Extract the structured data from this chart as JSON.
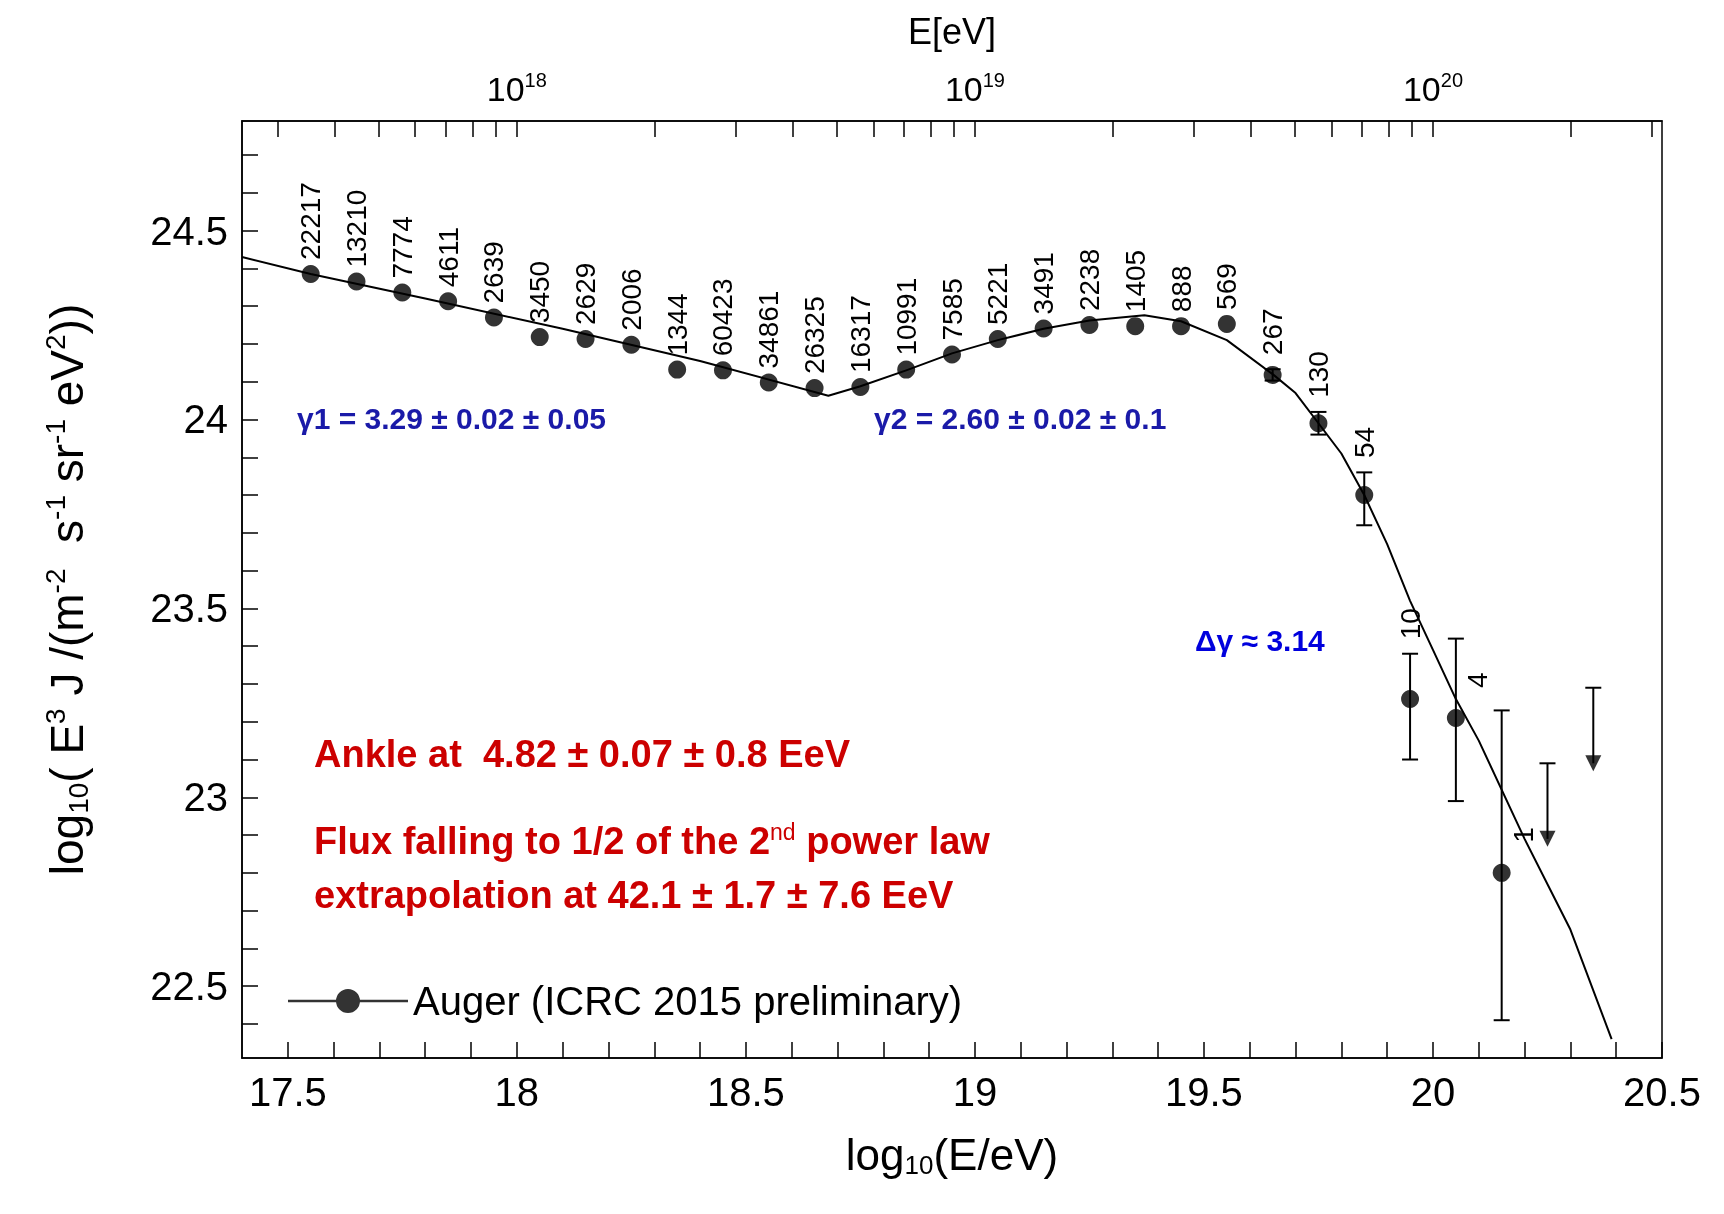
{
  "chart_data": {
    "type": "scatter",
    "xlabel": "log$_{10}$(E/eV)",
    "ylabel": "log$_{10}$( E$^{3}$ J /(m$^{-2}$  s$^{-1}$ sr$^{-1}$ eV$^{2}$))",
    "x2label": "E[eV]",
    "xlim": [
      17.4,
      20.5
    ],
    "ylim": [
      22.31,
      24.79
    ],
    "x2lim": [
      2.512e+17,
      3.162e+20
    ],
    "log": "x2",
    "xticks": [
      17.5,
      {
        "value": 17.6,
        "label": null
      },
      {
        "value": 17.7,
        "label": null
      },
      {
        "value": 17.8,
        "label": null
      },
      {
        "value": 17.9,
        "label": null
      },
      18,
      {
        "value": 18.1,
        "label": null
      },
      {
        "value": 18.2,
        "label": null
      },
      {
        "value": 18.3,
        "label": null
      },
      {
        "value": 18.4,
        "label": null
      },
      18.5,
      {
        "value": 18.6,
        "label": null
      },
      {
        "value": 18.7,
        "label": null
      },
      {
        "value": 18.8,
        "label": null
      },
      {
        "value": 18.9,
        "label": null
      },
      19,
      {
        "value": 19.1,
        "label": null
      },
      {
        "value": 19.2,
        "label": null
      },
      {
        "value": 19.3,
        "label": null
      },
      {
        "value": 19.4,
        "label": null
      },
      19.5,
      {
        "value": 19.6,
        "label": null
      },
      {
        "value": 19.7,
        "label": null
      },
      {
        "value": 19.8,
        "label": null
      },
      {
        "value": 19.9,
        "label": null
      },
      20,
      {
        "value": 20.1,
        "label": null
      },
      {
        "value": 20.2,
        "label": null
      },
      {
        "value": 20.3,
        "label": null
      },
      {
        "value": 20.4,
        "label": null
      },
      20.5
    ],
    "yticks": [
      {
        "value": 22.4,
        "label": null
      },
      22.5,
      {
        "value": 22.6,
        "label": null
      },
      {
        "value": 22.7,
        "label": null
      },
      {
        "value": 22.8,
        "label": null
      },
      {
        "value": 22.9,
        "label": null
      },
      23,
      {
        "value": 23.1,
        "label": null
      },
      {
        "value": 23.2,
        "label": null
      },
      {
        "value": 23.3,
        "label": null
      },
      {
        "value": 23.4,
        "label": null
      },
      23.5,
      {
        "value": 23.6,
        "label": null
      },
      {
        "value": 23.7,
        "label": null
      },
      {
        "value": 23.8,
        "label": null
      },
      {
        "value": 23.9,
        "label": null
      },
      24,
      {
        "value": 24.1,
        "label": null
      },
      {
        "value": 24.2,
        "label": null
      },
      {
        "value": 24.3,
        "label": null
      },
      {
        "value": 24.4,
        "label": null
      },
      24.5,
      {
        "value": 24.6,
        "label": null
      },
      {
        "value": 24.7,
        "label": null
      }
    ],
    "x2ticks": [
      {
        "value": 3e+17,
        "label": null
      },
      {
        "value": 4e+17,
        "label": null
      },
      {
        "value": 5e+17,
        "label": null
      },
      {
        "value": 6e+17,
        "label": null
      },
      {
        "value": 7e+17,
        "label": null
      },
      {
        "value": 8e+17,
        "label": null
      },
      {
        "value": 9e+17,
        "label": null
      },
      {
        "value": 1e+18,
        "label": "10$^{18}$"
      },
      {
        "value": 2e+18,
        "label": null
      },
      {
        "value": 3e+18,
        "label": null
      },
      {
        "value": 4e+18,
        "label": null
      },
      {
        "value": 5e+18,
        "label": null
      },
      {
        "value": 6e+18,
        "label": null
      },
      {
        "value": 7e+18,
        "label": null
      },
      {
        "value": 8e+18,
        "label": null
      },
      {
        "value": 9e+18,
        "label": null
      },
      {
        "value": 1e+19,
        "label": "10$^{19}$"
      },
      {
        "value": 2e+19,
        "label": null
      },
      {
        "value": 3e+19,
        "label": null
      },
      {
        "value": 4e+19,
        "label": null
      },
      {
        "value": 5e+19,
        "label": null
      },
      {
        "value": 6e+19,
        "label": null
      },
      {
        "value": 7e+19,
        "label": null
      },
      {
        "value": 8e+19,
        "label": null
      },
      {
        "value": 9e+19,
        "label": null
      },
      {
        "value": 1e+20,
        "label": "10$^{20}$"
      },
      {
        "value": 2e+20,
        "label": null
      },
      {
        "value": 3e+20,
        "label": null
      }
    ],
    "grid": false,
    "legend": "bottom left",
    "series": [
      {
        "name": "Auger (ICRC 2015 preliminary)",
        "marker": "circle",
        "color": "#000000",
        "x": [
          17.55,
          17.65,
          17.75,
          17.85,
          17.95,
          18.05,
          18.15,
          18.25,
          18.35,
          18.45,
          18.55,
          18.65,
          18.75,
          18.85,
          18.95,
          19.05,
          19.15,
          19.25,
          19.35,
          19.45,
          19.55,
          19.65,
          19.75,
          19.85,
          19.95,
          20.05,
          20.15
        ],
        "values": [
          24.385,
          24.365,
          24.336,
          24.313,
          24.27,
          24.218,
          24.213,
          24.198,
          24.132,
          24.13,
          24.098,
          24.083,
          24.086,
          24.132,
          24.172,
          24.213,
          24.241,
          24.25,
          24.247,
          24.247,
          24.253,
          24.118,
          23.99,
          23.8,
          23.26,
          23.21,
          22.8
        ],
        "errors": [
          null,
          null,
          null,
          null,
          null,
          null,
          null,
          null,
          null,
          null,
          null,
          null,
          null,
          null,
          null,
          null,
          null,
          null,
          null,
          null,
          null,
          0.015,
          0.03,
          [
            23.72,
            23.86
          ],
          [
            23.1,
            23.38
          ],
          [
            22.99,
            23.42
          ],
          [
            22.41,
            23.23
          ]
        ]
      },
      {
        "type": "scatter",
        "marker": "triangle",
        "color": "#000000",
        "x": [
          20.25,
          20.35
        ],
        "values": [
          22.89,
          23.09
        ],
        "errors": [
          [
            22.89,
            23.09
          ],
          [
            23.09,
            23.29
          ]
        ]
      },
      {
        "type": "line",
        "marker": "none",
        "color": "#000000",
        "x": [
          17.4,
          17.55,
          17.8,
          18.1,
          18.4,
          18.68,
          18.75,
          18.85,
          18.95,
          19.05,
          19.15,
          19.25,
          19.37,
          19.45,
          19.55,
          19.65,
          19.7,
          19.75,
          19.8,
          19.85,
          19.9,
          19.95,
          20.0,
          20.05,
          20.1,
          20.2,
          20.3,
          20.39
        ],
        "values": [
          24.43,
          24.385,
          24.32,
          24.24,
          24.155,
          24.063,
          24.088,
          24.13,
          24.175,
          24.21,
          24.24,
          24.262,
          24.276,
          24.26,
          24.21,
          24.12,
          24.07,
          23.99,
          23.91,
          23.8,
          23.67,
          23.52,
          23.39,
          23.26,
          23.15,
          22.89,
          22.65,
          22.36
        ]
      }
    ],
    "annotations": [
      {
        "text": "22217",
        "x": 17.55,
        "y": 24.385
      },
      {
        "text": "13210",
        "x": 17.65,
        "y": 24.365
      },
      {
        "text": "7774",
        "x": 17.75,
        "y": 24.336
      },
      {
        "text": "4611",
        "x": 17.85,
        "y": 24.313
      },
      {
        "text": "2639",
        "x": 17.95,
        "y": 24.27
      },
      {
        "text": "3450",
        "x": 18.05,
        "y": 24.218
      },
      {
        "text": "2629",
        "x": 18.15,
        "y": 24.213
      },
      {
        "text": "2006",
        "x": 18.25,
        "y": 24.198
      },
      {
        "text": "1344",
        "x": 18.35,
        "y": 24.132
      },
      {
        "text": "60423",
        "x": 18.45,
        "y": 24.13
      },
      {
        "text": "34861",
        "x": 18.55,
        "y": 24.098
      },
      {
        "text": "26325",
        "x": 18.65,
        "y": 24.083
      },
      {
        "text": "16317",
        "x": 18.75,
        "y": 24.086
      },
      {
        "text": "10991",
        "x": 18.85,
        "y": 24.132
      },
      {
        "text": "7585",
        "x": 18.95,
        "y": 24.172
      },
      {
        "text": "5221",
        "x": 19.05,
        "y": 24.213
      },
      {
        "text": "3491",
        "x": 19.15,
        "y": 24.241
      },
      {
        "text": "2238",
        "x": 19.25,
        "y": 24.25
      },
      {
        "text": "1405",
        "x": 19.35,
        "y": 24.247
      },
      {
        "text": "888",
        "x": 19.45,
        "y": 24.247
      },
      {
        "text": "569",
        "x": 19.55,
        "y": 24.253
      },
      {
        "text": "267",
        "x": 19.65,
        "y": 24.118
      },
      {
        "text": "130",
        "x": 19.75,
        "y": 23.99
      },
      {
        "text": "54",
        "x": 19.85,
        "y": 23.8
      },
      {
        "text": "10",
        "x": 19.95,
        "y": 23.26
      },
      {
        "text": "4",
        "x": 20.05,
        "y": 23.21
      },
      {
        "text": "1",
        "x": 20.15,
        "y": 22.8
      },
      "γ1 = 3.29 ± 0.02 ± 0.05",
      "γ2 = 2.60 ± 0.02 ± 0.1",
      "Δγ ≈ 3.14",
      "Ankle at  4.82 ± 0.07 ± 0.8 EeV",
      "Flux falling to 1/2 of the 2$^{nd}$ power law",
      "extrapolation at 42.1 ± 1.7 ± 7.6 EeV"
    ]
  }
}
